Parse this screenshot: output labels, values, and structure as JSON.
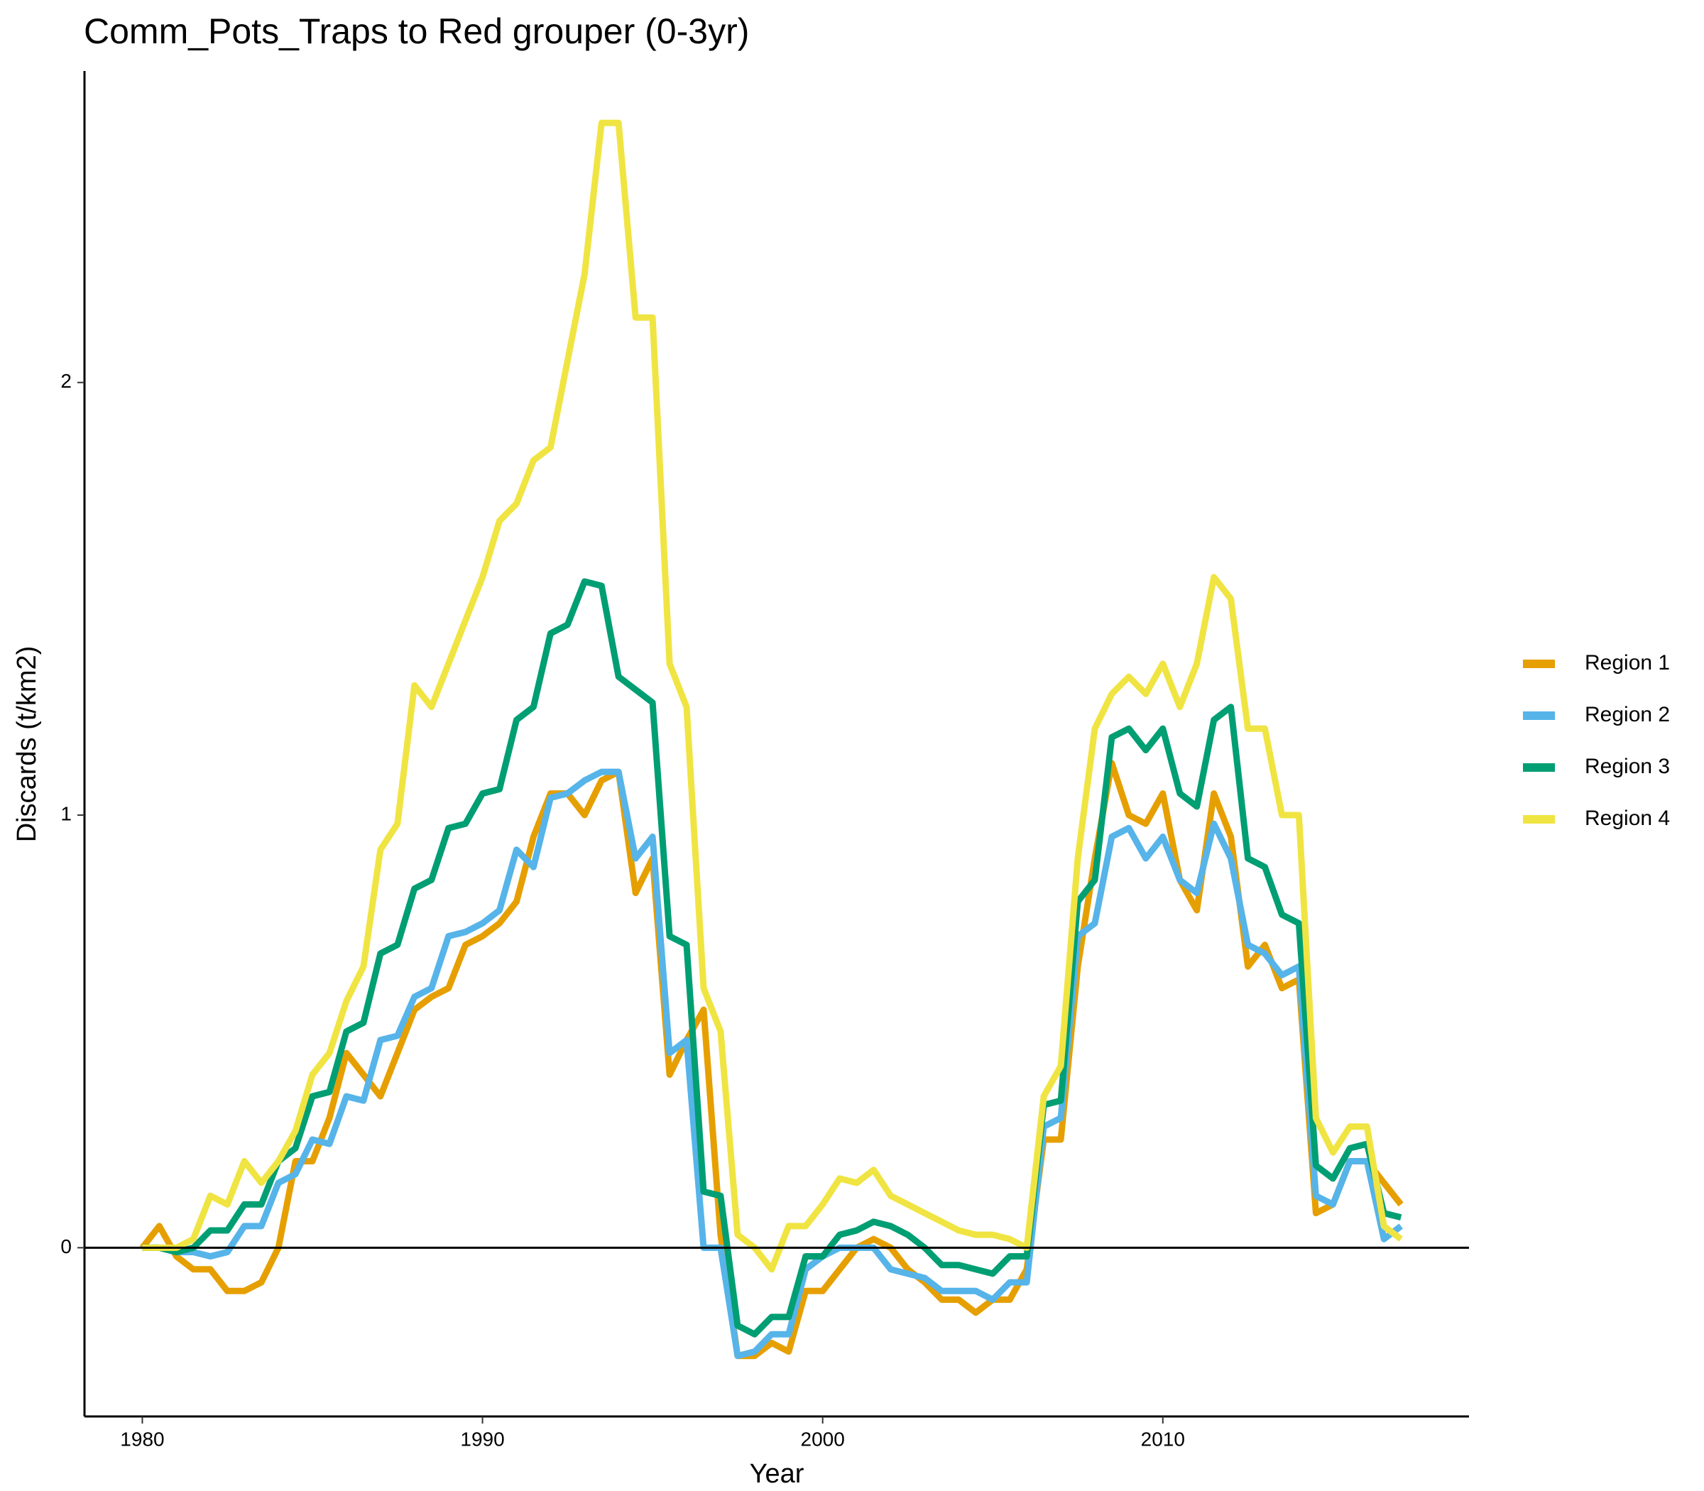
{
  "chart_data": {
    "type": "line",
    "title": "Comm_Pots_Traps to Red grouper (0-3yr)",
    "xlabel": "Year",
    "ylabel": "Discards (t/km2)",
    "x": [
      1980,
      1980.5,
      1981,
      1981.5,
      1982,
      1982.5,
      1983,
      1983.5,
      1984,
      1984.5,
      1985,
      1985.5,
      1986,
      1986.5,
      1987,
      1987.5,
      1988,
      1988.5,
      1989,
      1989.5,
      1990,
      1990.5,
      1991,
      1991.5,
      1992,
      1992.5,
      1993,
      1993.5,
      1994,
      1994.5,
      1995,
      1995.5,
      1996,
      1996.5,
      1997,
      1997.5,
      1998,
      1998.5,
      1999,
      1999.5,
      2000,
      2000.5,
      2001,
      2001.5,
      2002,
      2002.5,
      2003,
      2003.5,
      2004,
      2004.5,
      2005,
      2005.5,
      2006,
      2006.5,
      2007,
      2007.5,
      2008,
      2008.5,
      2009,
      2009.5,
      2010,
      2010.5,
      2011,
      2011.5,
      2012,
      2012.5,
      2013,
      2013.5,
      2014,
      2014.5,
      2015,
      2015.5,
      2016,
      2016.5,
      2017
    ],
    "series": [
      {
        "name": "Region 1",
        "color": "#e69f00",
        "values": [
          0.0,
          0.05,
          -0.02,
          -0.05,
          -0.05,
          -0.1,
          -0.1,
          -0.08,
          0.0,
          0.2,
          0.2,
          0.3,
          0.45,
          0.4,
          0.35,
          0.45,
          0.55,
          0.58,
          0.6,
          0.7,
          0.72,
          0.75,
          0.8,
          0.95,
          1.05,
          1.05,
          1.0,
          1.08,
          1.1,
          0.82,
          0.9,
          0.4,
          0.48,
          0.55,
          0.03,
          -0.25,
          -0.25,
          -0.22,
          -0.24,
          -0.1,
          -0.1,
          -0.05,
          0.0,
          0.02,
          0.0,
          -0.05,
          -0.08,
          -0.12,
          -0.12,
          -0.15,
          -0.12,
          -0.12,
          -0.05,
          0.25,
          0.25,
          0.65,
          0.9,
          1.12,
          1.0,
          0.98,
          1.05,
          0.85,
          0.78,
          1.05,
          0.95,
          0.65,
          0.7,
          0.6,
          0.62,
          0.08,
          0.1,
          0.2,
          0.2,
          0.15,
          0.1
        ]
      },
      {
        "name": "Region 2",
        "color": "#56b4e9",
        "values": [
          0.0,
          0.0,
          -0.01,
          -0.01,
          -0.02,
          -0.01,
          0.05,
          0.05,
          0.15,
          0.17,
          0.25,
          0.24,
          0.35,
          0.34,
          0.48,
          0.49,
          0.58,
          0.6,
          0.72,
          0.73,
          0.75,
          0.78,
          0.92,
          0.88,
          1.04,
          1.05,
          1.08,
          1.1,
          1.1,
          0.9,
          0.95,
          0.45,
          0.48,
          0.0,
          0.0,
          -0.25,
          -0.24,
          -0.2,
          -0.2,
          -0.05,
          -0.02,
          0.0,
          0.0,
          0.0,
          -0.05,
          -0.06,
          -0.07,
          -0.1,
          -0.1,
          -0.1,
          -0.12,
          -0.08,
          -0.08,
          0.28,
          0.3,
          0.72,
          0.75,
          0.95,
          0.97,
          0.9,
          0.95,
          0.85,
          0.82,
          0.98,
          0.9,
          0.7,
          0.68,
          0.63,
          0.65,
          0.12,
          0.1,
          0.2,
          0.2,
          0.02,
          0.05
        ]
      },
      {
        "name": "Region 3",
        "color": "#009e73",
        "values": [
          0.0,
          0.0,
          -0.01,
          0.0,
          0.04,
          0.04,
          0.1,
          0.1,
          0.2,
          0.23,
          0.35,
          0.36,
          0.5,
          0.52,
          0.68,
          0.7,
          0.83,
          0.85,
          0.97,
          0.98,
          1.05,
          1.06,
          1.22,
          1.25,
          1.42,
          1.44,
          1.54,
          1.53,
          1.32,
          1.29,
          1.26,
          0.72,
          0.7,
          0.13,
          0.12,
          -0.18,
          -0.2,
          -0.16,
          -0.16,
          -0.02,
          -0.02,
          0.03,
          0.04,
          0.06,
          0.05,
          0.03,
          0.0,
          -0.04,
          -0.04,
          -0.05,
          -0.06,
          -0.02,
          -0.02,
          0.33,
          0.34,
          0.8,
          0.85,
          1.18,
          1.2,
          1.15,
          1.2,
          1.05,
          1.02,
          1.22,
          1.25,
          0.9,
          0.88,
          0.77,
          0.75,
          0.19,
          0.16,
          0.23,
          0.24,
          0.08,
          0.07
        ]
      },
      {
        "name": "Region 4",
        "color": "#f0e442",
        "values": [
          0.0,
          0.0,
          0.0,
          0.02,
          0.12,
          0.1,
          0.2,
          0.15,
          0.2,
          0.27,
          0.4,
          0.45,
          0.57,
          0.65,
          0.92,
          0.98,
          1.3,
          1.25,
          1.35,
          1.45,
          1.55,
          1.68,
          1.72,
          1.82,
          1.85,
          2.05,
          2.25,
          2.6,
          2.6,
          2.15,
          2.15,
          1.35,
          1.25,
          0.6,
          0.5,
          0.03,
          0.0,
          -0.05,
          0.05,
          0.05,
          0.1,
          0.16,
          0.15,
          0.18,
          0.12,
          0.1,
          0.08,
          0.06,
          0.04,
          0.03,
          0.03,
          0.02,
          0.0,
          0.35,
          0.42,
          0.9,
          1.2,
          1.28,
          1.32,
          1.28,
          1.35,
          1.25,
          1.35,
          1.55,
          1.5,
          1.2,
          1.2,
          1.0,
          1.0,
          0.3,
          0.22,
          0.28,
          0.28,
          0.05,
          0.02
        ]
      }
    ],
    "xlim": [
      1978.3,
      2019.0
    ],
    "ylim": [
      -0.39,
      2.72
    ],
    "xticks": [
      1980,
      1990,
      2000,
      2010
    ],
    "yticks": [
      0,
      1,
      2
    ],
    "hline": 0,
    "legend": "right",
    "grid": false
  }
}
